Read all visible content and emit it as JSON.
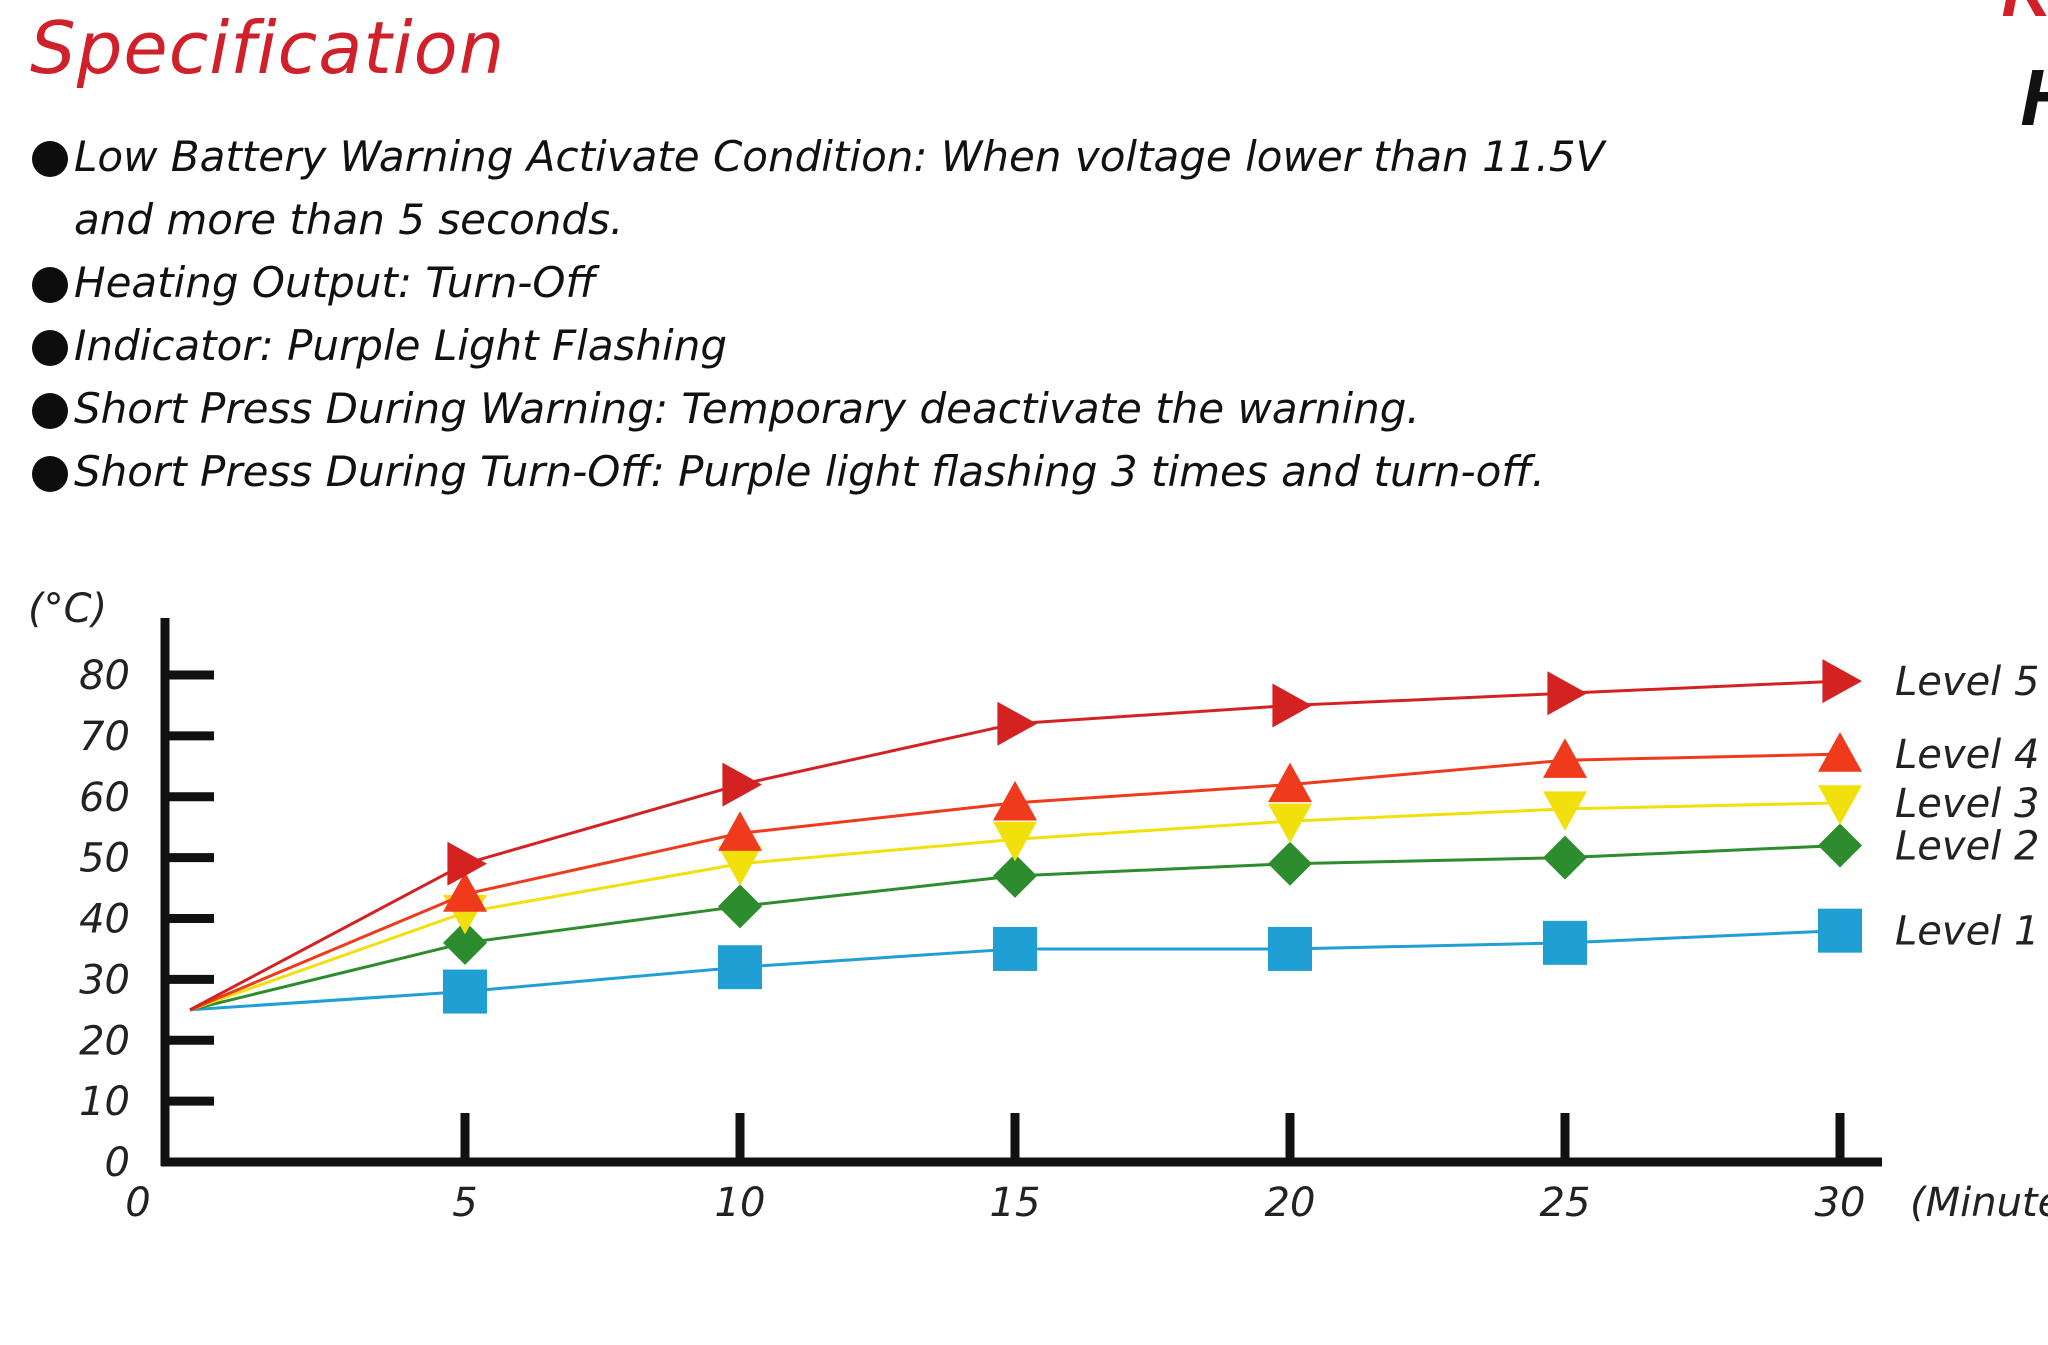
{
  "header": {
    "title": "Specification",
    "corner_red": "K",
    "corner_black": "H"
  },
  "spec": {
    "items": [
      {
        "lines": [
          "Low Battery Warning Activate Condition: When voltage lower than 11.5V",
          "and more than 5 seconds."
        ]
      },
      {
        "lines": [
          "Heating Output: Turn-Off"
        ]
      },
      {
        "lines": [
          "Indicator: Purple Light Flashing"
        ]
      },
      {
        "lines": [
          "Short Press During Warning: Temporary deactivate the warning."
        ]
      },
      {
        "lines": [
          "Short Press During Turn-Off: Purple light flashing 3 times and turn-off."
        ]
      }
    ]
  },
  "chart_data": {
    "type": "line",
    "title": "",
    "xlabel": "(Minute",
    "ylabel": "(°C)",
    "x": [
      0,
      5,
      10,
      15,
      20,
      25,
      30
    ],
    "xlim": [
      0,
      30
    ],
    "ylim": [
      0,
      80
    ],
    "xticks": [
      "0",
      "5",
      "10",
      "15",
      "20",
      "25",
      "30"
    ],
    "yticks": [
      "0",
      "10",
      "20",
      "30",
      "40",
      "50",
      "60",
      "70",
      "80"
    ],
    "grid": false,
    "legend": "right",
    "series": [
      {
        "name": "Level 5",
        "color": "#d42222",
        "marker": "triangle-right",
        "values": [
          25,
          49,
          62,
          72,
          75,
          77,
          79
        ]
      },
      {
        "name": "Level 4",
        "color": "#f03a1c",
        "marker": "triangle-up",
        "values": [
          25,
          44,
          54,
          59,
          62,
          66,
          67
        ]
      },
      {
        "name": "Level 3",
        "color": "#f2e00c",
        "marker": "triangle-down",
        "values": [
          25,
          41,
          49,
          53,
          56,
          58,
          59
        ]
      },
      {
        "name": "Level 2",
        "color": "#2d8c2d",
        "marker": "diamond",
        "values": [
          25,
          36,
          42,
          47,
          49,
          50,
          52
        ]
      },
      {
        "name": "Level 1",
        "color": "#1f9fd4",
        "marker": "square",
        "values": [
          25,
          28,
          32,
          35,
          35,
          36,
          38
        ]
      }
    ]
  }
}
